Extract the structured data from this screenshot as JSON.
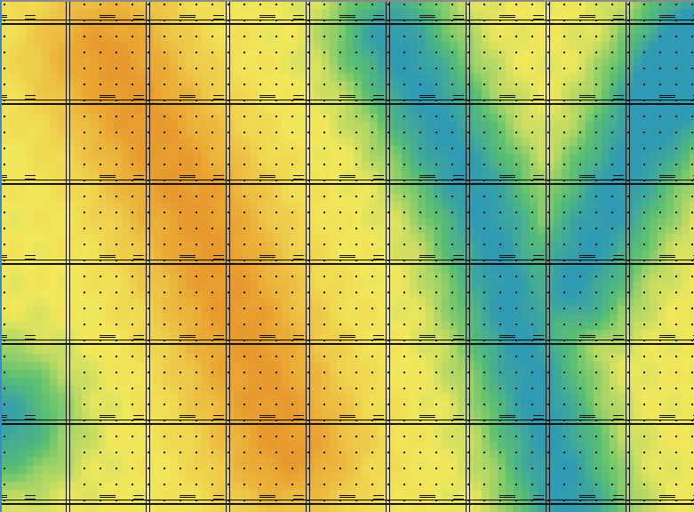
{
  "map": {
    "view": "terrain-height-overlay",
    "colors": {
      "high": "#e89a2c",
      "mid": "#f2e85c",
      "low": "#5cc070",
      "lowest": "#2f9ab4",
      "road": "#111111",
      "frame_left": "#3a8ad0"
    },
    "grid": {
      "columns": 9,
      "rows": 7
    }
  }
}
